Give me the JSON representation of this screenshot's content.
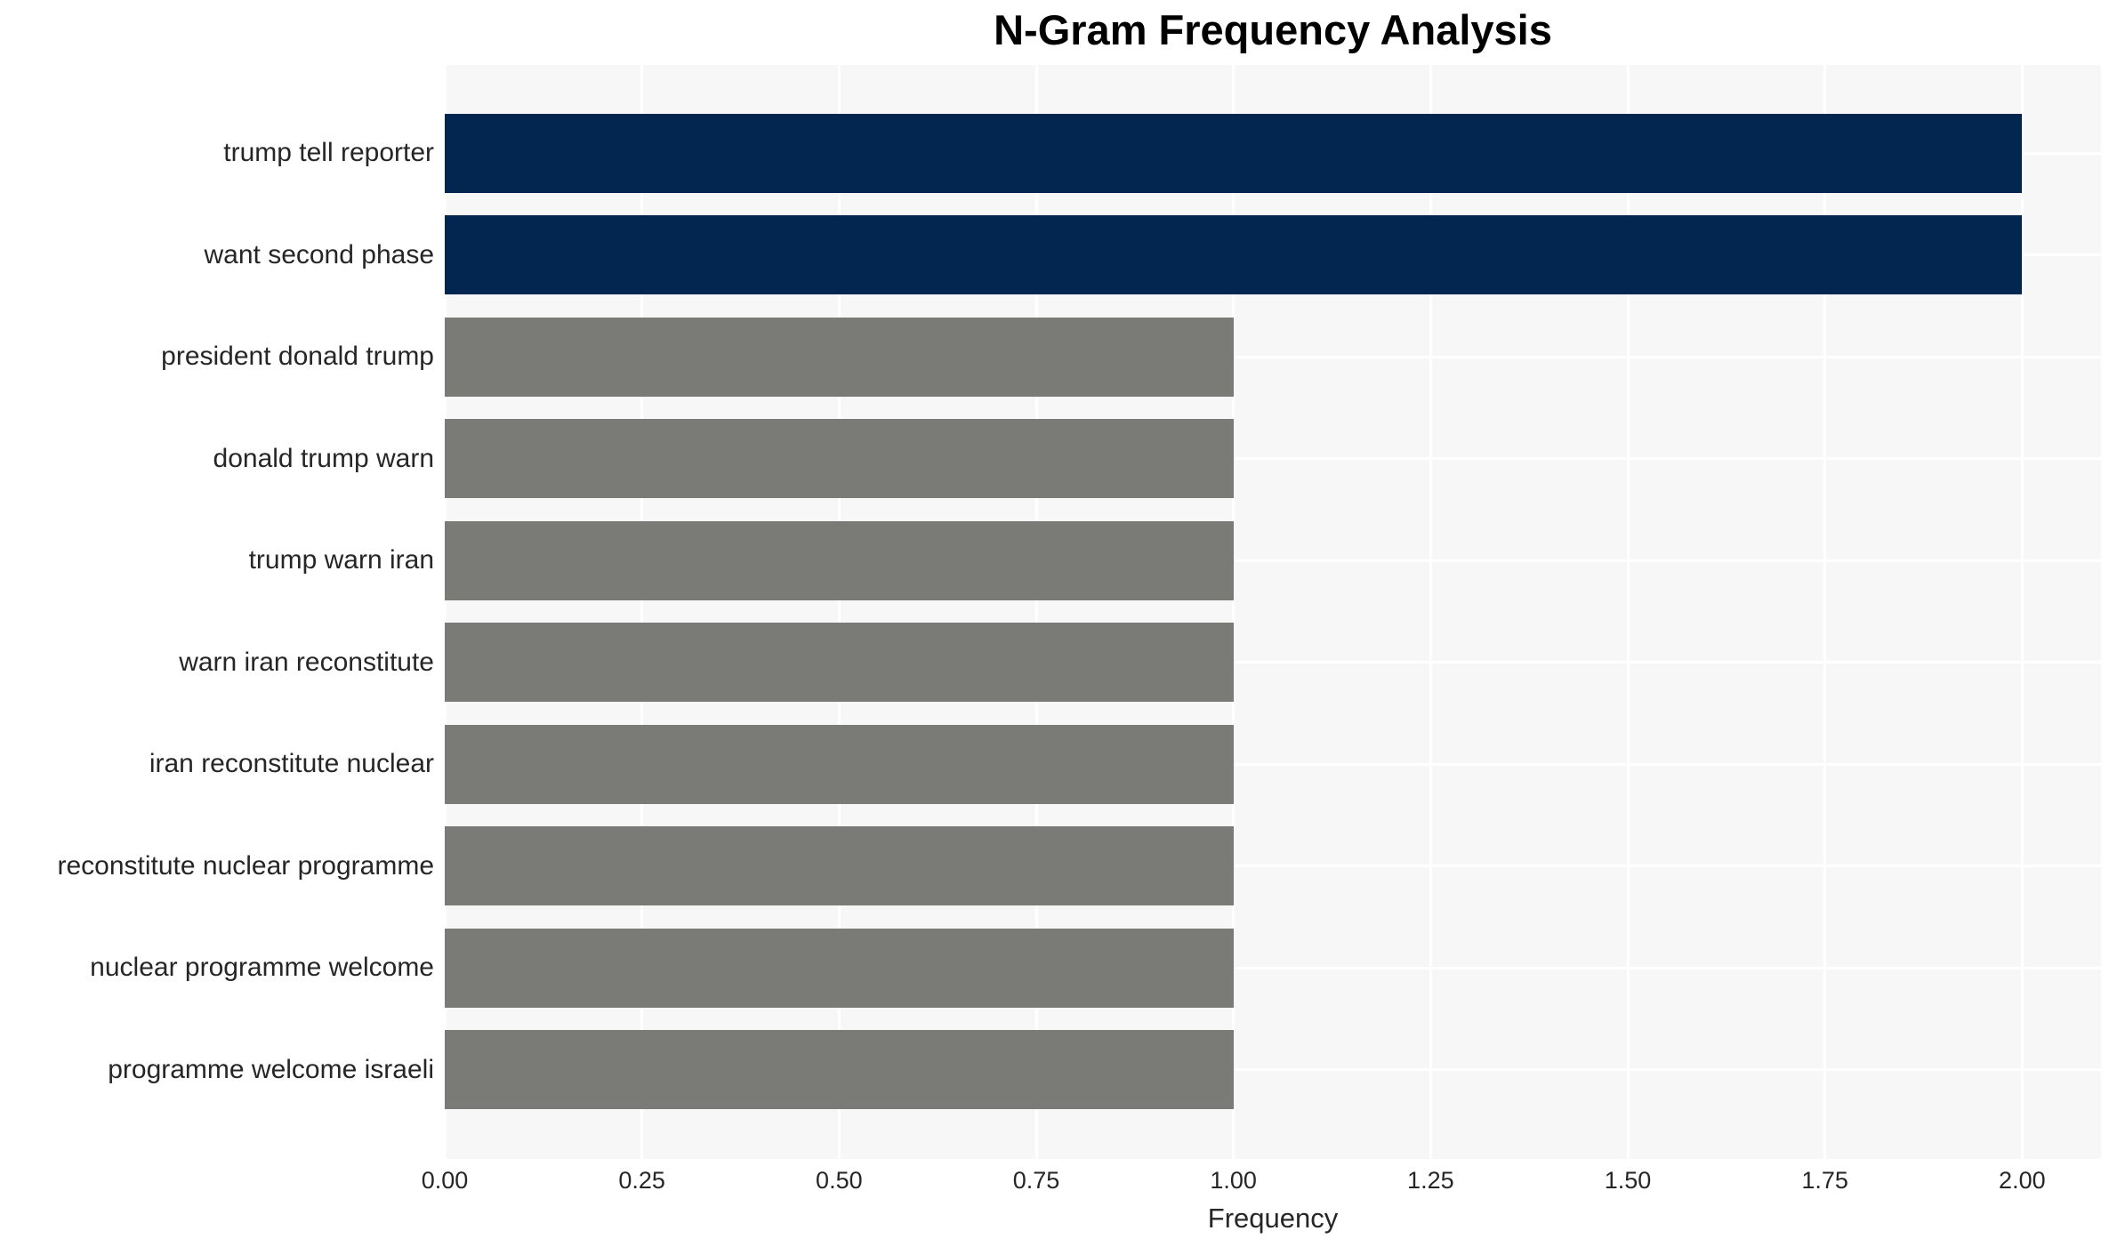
{
  "chart_data": {
    "type": "bar",
    "orientation": "horizontal",
    "title": "N-Gram Frequency Analysis",
    "xlabel": "Frequency",
    "ylabel": "",
    "categories": [
      "trump tell reporter",
      "want second phase",
      "president donald trump",
      "donald trump warn",
      "trump warn iran",
      "warn iran reconstitute",
      "iran reconstitute nuclear",
      "reconstitute nuclear programme",
      "nuclear programme welcome",
      "programme welcome israeli"
    ],
    "values": [
      2,
      2,
      1,
      1,
      1,
      1,
      1,
      1,
      1,
      1
    ],
    "bar_colors": [
      "#02264f",
      "#02264f",
      "#7a7a76",
      "#7a7a76",
      "#7a7a76",
      "#7a7a76",
      "#7a7a76",
      "#7a7a76",
      "#7a7a76",
      "#7a7a76"
    ],
    "xlim": [
      0,
      2.1
    ],
    "xticks": [
      {
        "value": 0.0,
        "label": "0.00"
      },
      {
        "value": 0.25,
        "label": "0.25"
      },
      {
        "value": 0.5,
        "label": "0.50"
      },
      {
        "value": 0.75,
        "label": "0.75"
      },
      {
        "value": 1.0,
        "label": "1.00"
      },
      {
        "value": 1.25,
        "label": "1.25"
      },
      {
        "value": 1.5,
        "label": "1.50"
      },
      {
        "value": 1.75,
        "label": "1.75"
      },
      {
        "value": 2.0,
        "label": "2.00"
      }
    ],
    "grid": true,
    "legend": null,
    "colors": {
      "highlight_bar": "#02264f",
      "default_bar": "#7a7a76",
      "plot_background": "#f7f7f7",
      "gridline": "#ffffff",
      "text": "#262626",
      "title_text": "#000000"
    }
  }
}
